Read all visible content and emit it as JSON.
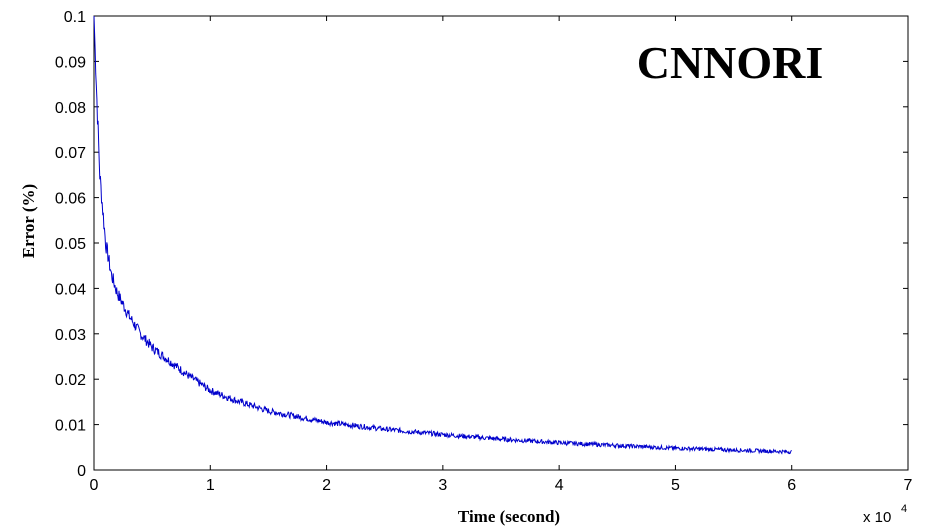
{
  "chart_data": {
    "type": "line",
    "title": "CNNORI",
    "xlabel": "Time (second)",
    "ylabel": "Error (%)",
    "x_multiplier_label": "x 10",
    "x_multiplier_exponent": "4",
    "xlim": [
      0,
      7
    ],
    "ylim": [
      0,
      0.1
    ],
    "x_ticks": [
      "0",
      "1",
      "2",
      "3",
      "4",
      "5",
      "6",
      "7"
    ],
    "y_ticks": [
      "0",
      "0.01",
      "0.02",
      "0.03",
      "0.04",
      "0.05",
      "0.06",
      "0.07",
      "0.08",
      "0.09",
      "0.1"
    ],
    "grid": false,
    "series": [
      {
        "color": "#0000cc",
        "x": [
          0.0,
          0.02,
          0.05,
          0.1,
          0.15,
          0.2,
          0.3,
          0.4,
          0.5,
          0.6,
          0.8,
          1.0,
          1.2,
          1.5,
          2.0,
          2.5,
          3.0,
          3.5,
          4.0,
          4.5,
          5.0,
          5.5,
          6.0
        ],
        "y": [
          0.1,
          0.085,
          0.065,
          0.05,
          0.043,
          0.039,
          0.034,
          0.03,
          0.027,
          0.025,
          0.021,
          0.0175,
          0.0155,
          0.013,
          0.0105,
          0.009,
          0.0078,
          0.0068,
          0.006,
          0.0054,
          0.0048,
          0.0044,
          0.004
        ]
      }
    ]
  }
}
